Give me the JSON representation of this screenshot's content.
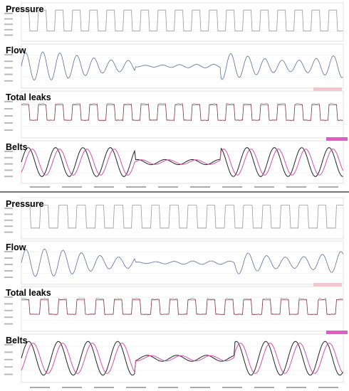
{
  "panels": [
    {
      "traces": [
        {
          "label": "Pressure"
        },
        {
          "label": "Flow"
        },
        {
          "label": "Total leaks"
        },
        {
          "label": "Belts"
        }
      ]
    },
    {
      "traces": [
        {
          "label": "Pressure"
        },
        {
          "label": "Flow"
        },
        {
          "label": "Total leaks"
        },
        {
          "label": "Belts"
        }
      ]
    }
  ]
}
